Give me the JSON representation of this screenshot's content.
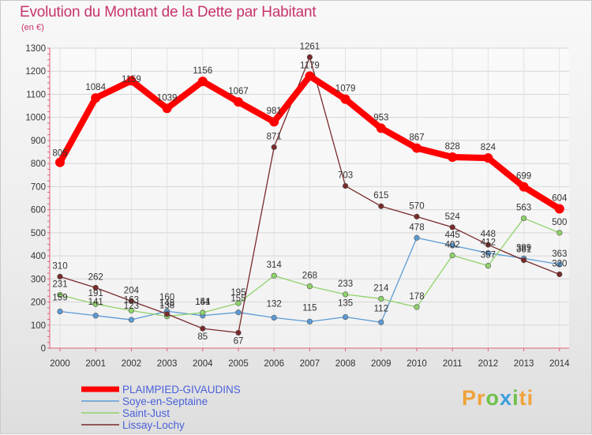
{
  "title": "Evolution du Montant de la Dette par Habitant",
  "subtitle": "(en €)",
  "logo_text": "Proxiti",
  "chart_data": {
    "type": "line",
    "title": "Evolution du Montant de la Dette par Habitant",
    "subtitle": "(en €)",
    "xlabel": "",
    "ylabel": "",
    "ylim": [
      0,
      1300
    ],
    "yticks": [
      0,
      100,
      200,
      300,
      400,
      500,
      600,
      700,
      800,
      900,
      1000,
      1100,
      1200,
      1300
    ],
    "grid": true,
    "legend_position": "bottom-left",
    "categories": [
      "2000",
      "2001",
      "2002",
      "2003",
      "2004",
      "2005",
      "2006",
      "2007",
      "2008",
      "2009",
      "2010",
      "2011",
      "2012",
      "2013",
      "2014"
    ],
    "series": [
      {
        "name": "PLAIMPIED-GIVAUDINS",
        "color": "#ff0000",
        "values": [
          805,
          1084,
          1159,
          1039,
          1156,
          1067,
          981,
          1179,
          1079,
          953,
          867,
          828,
          824,
          699,
          604
        ]
      },
      {
        "name": "Soye-en-Septaine",
        "color": "#5b9bd5",
        "values": [
          159,
          141,
          123,
          160,
          141,
          155,
          132,
          115,
          135,
          112,
          478,
          445,
          412,
          389,
          363
        ]
      },
      {
        "name": "Saint-Just",
        "color": "#8fd26a",
        "values": [
          231,
          191,
          163,
          138,
          154,
          195,
          314,
          268,
          233,
          214,
          178,
          402,
          357,
          563,
          500
        ]
      },
      {
        "name": "Lissay-Lochy",
        "color": "#7a2a2a",
        "values": [
          310,
          262,
          204,
          148,
          85,
          67,
          871,
          1261,
          703,
          615,
          570,
          524,
          448,
          381,
          320
        ]
      }
    ]
  }
}
